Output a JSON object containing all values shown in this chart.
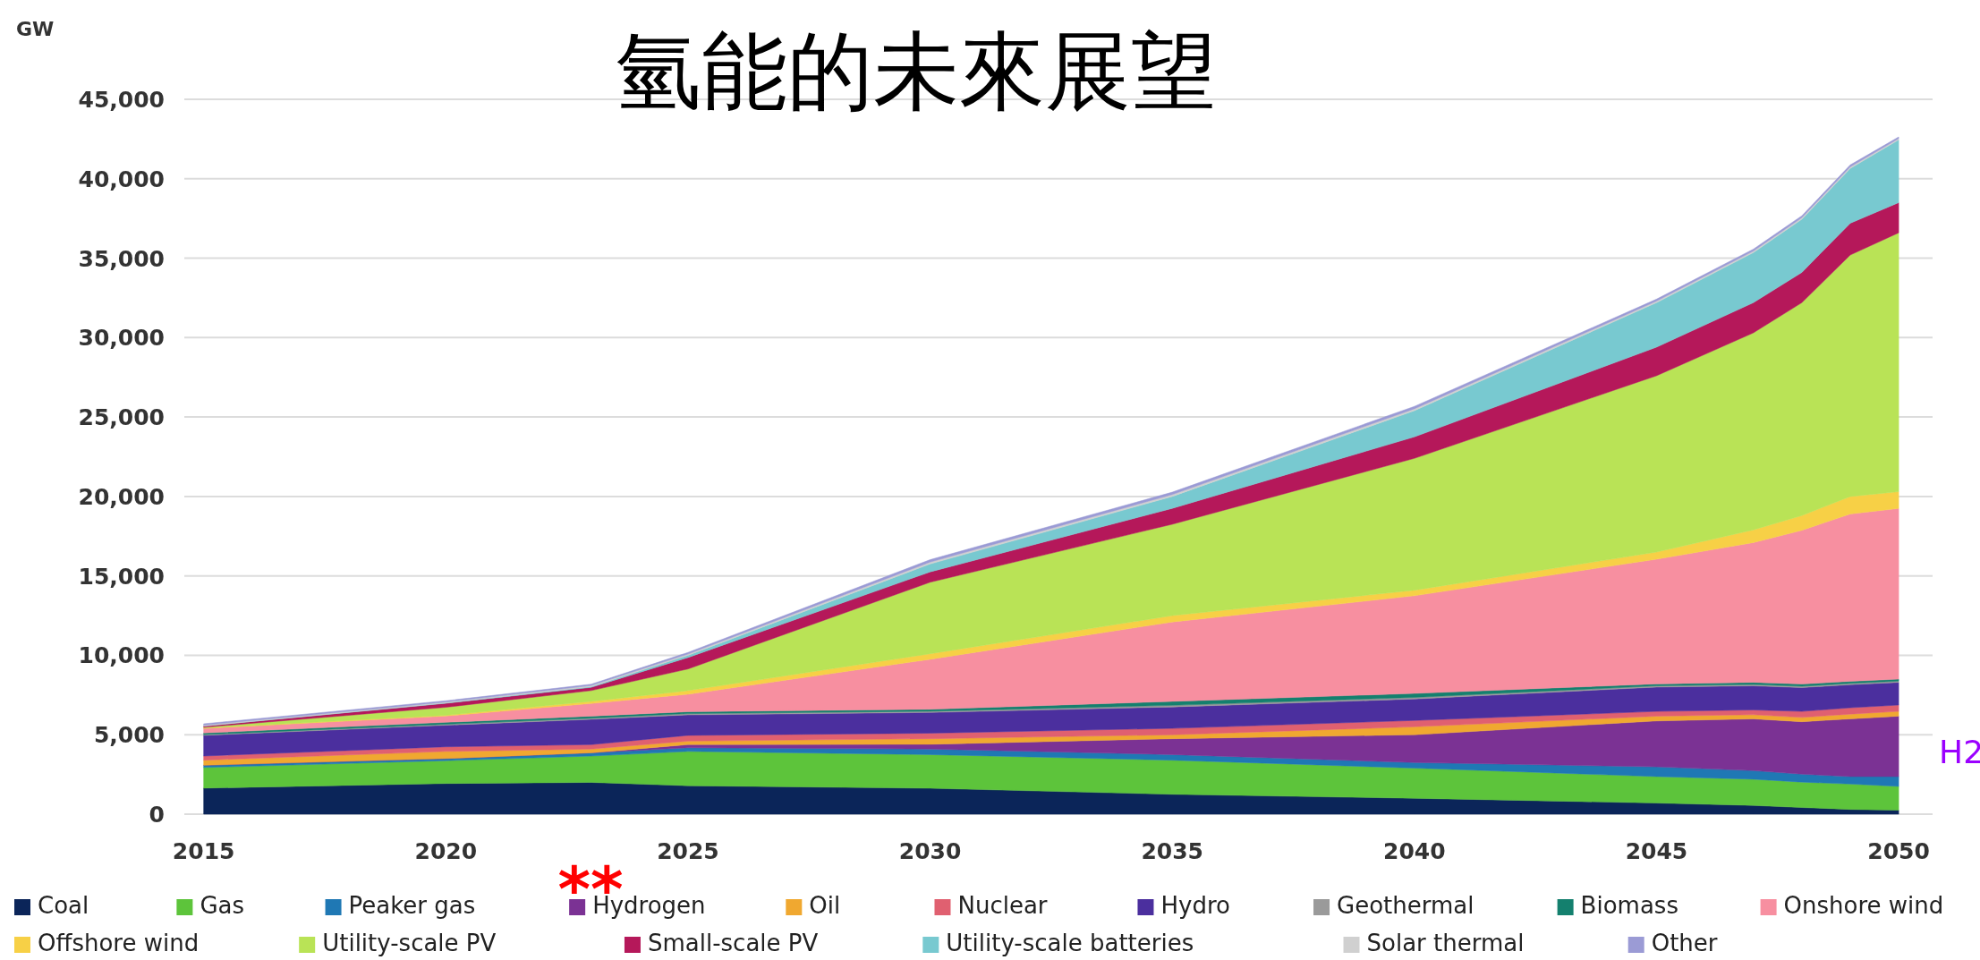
{
  "chart_data": {
    "type": "area",
    "stacked": true,
    "title": "氫能的未來展望",
    "ylabel": "GW",
    "x": [
      2015,
      2020,
      2023,
      2025,
      2030,
      2035,
      2040,
      2045,
      2047,
      2048,
      2049,
      2050
    ],
    "xlim": [
      2014.6,
      2050.7
    ],
    "xticks": [
      2015,
      2020,
      2025,
      2030,
      2035,
      2040,
      2045,
      2050
    ],
    "ylim": [
      0,
      45000
    ],
    "yticks": [
      0,
      {
        "value": 5000,
        "label": "5,000"
      },
      {
        "value": 10000,
        "label": "10,000"
      },
      {
        "value": 15000,
        "label": "15,000"
      },
      {
        "value": 20000,
        "label": "20,000"
      },
      {
        "value": 25000,
        "label": "25,000"
      },
      {
        "value": 30000,
        "label": "30,000"
      },
      {
        "value": 35000,
        "label": "35,000"
      },
      {
        "value": 40000,
        "label": "40,000"
      },
      {
        "value": 45000,
        "label": "45,000"
      }
    ],
    "grid": "y",
    "legend": "bottom",
    "series": [
      {
        "name": "Coal",
        "color": "#0b2559",
        "values": [
          1640,
          1930,
          2000,
          1790,
          1630,
          1250,
          1000,
          700,
          550,
          420,
          300,
          250
        ]
      },
      {
        "name": "Gas",
        "color": "#5dc43b",
        "values": [
          1300,
          1440,
          1660,
          2160,
          2120,
          2150,
          1900,
          1670,
          1650,
          1600,
          1600,
          1500
        ]
      },
      {
        "name": "Peaker gas",
        "color": "#1f78b4",
        "values": [
          140,
          130,
          200,
          230,
          350,
          350,
          350,
          610,
          540,
          500,
          470,
          620
        ]
      },
      {
        "name": "Hydrogen",
        "color": "#7b3294",
        "values": [
          0,
          0,
          0,
          200,
          300,
          1000,
          1750,
          2890,
          3260,
          3300,
          3630,
          3800
        ]
      },
      {
        "name": "Oil",
        "color": "#f0a830",
        "values": [
          320,
          450,
          240,
          220,
          350,
          250,
          500,
          300,
          260,
          270,
          300,
          300
        ]
      },
      {
        "name": "Nuclear",
        "color": "#e06070",
        "values": [
          260,
          290,
          280,
          360,
          350,
          400,
          400,
          300,
          300,
          380,
          400,
          400
        ]
      },
      {
        "name": "Hydro",
        "color": "#4b2f9e",
        "values": [
          1300,
          1360,
          1590,
          1290,
          1300,
          1350,
          1350,
          1530,
          1520,
          1500,
          1450,
          1430
        ]
      },
      {
        "name": "Geothermal",
        "color": "#9a9a9a",
        "values": [
          50,
          60,
          70,
          80,
          80,
          100,
          100,
          80,
          80,
          80,
          80,
          80
        ]
      },
      {
        "name": "Biomass",
        "color": "#14806e",
        "values": [
          100,
          120,
          130,
          120,
          120,
          250,
          250,
          120,
          140,
          140,
          130,
          120
        ]
      },
      {
        "name": "Onshore wind",
        "color": "#f78fa0",
        "values": [
          290,
          400,
          800,
          1100,
          3150,
          5000,
          6150,
          7850,
          8800,
          9680,
          10540,
          10750
        ]
      },
      {
        "name": "Offshore wind",
        "color": "#f7d046",
        "values": [
          20,
          50,
          130,
          230,
          350,
          400,
          350,
          450,
          800,
          930,
          1100,
          1050
        ]
      },
      {
        "name": "Utility-scale PV",
        "color": "#b9e356",
        "values": [
          50,
          500,
          680,
          1360,
          4500,
          5750,
          8300,
          11100,
          12400,
          13400,
          15200,
          16300
        ]
      },
      {
        "name": "Small-scale PV",
        "color": "#b5185a",
        "values": [
          80,
          250,
          200,
          720,
          650,
          1000,
          1350,
          1800,
          1900,
          1900,
          2000,
          1900
        ]
      },
      {
        "name": "Utility-scale batteries",
        "color": "#78c9d0",
        "values": [
          0,
          20,
          50,
          140,
          500,
          750,
          1650,
          2800,
          3150,
          3350,
          3450,
          3950
        ]
      },
      {
        "name": "Solar thermal",
        "color": "#d0d0d0",
        "values": [
          60,
          60,
          70,
          80,
          120,
          120,
          120,
          100,
          100,
          100,
          100,
          80
        ]
      },
      {
        "name": "Other",
        "color": "#9b9bd5",
        "values": [
          80,
          80,
          80,
          100,
          150,
          150,
          150,
          120,
          120,
          120,
          120,
          100
        ]
      }
    ],
    "annotations": [
      "**",
      {
        "text": "H2",
        "x": 2050,
        "y": 4000
      }
    ]
  }
}
